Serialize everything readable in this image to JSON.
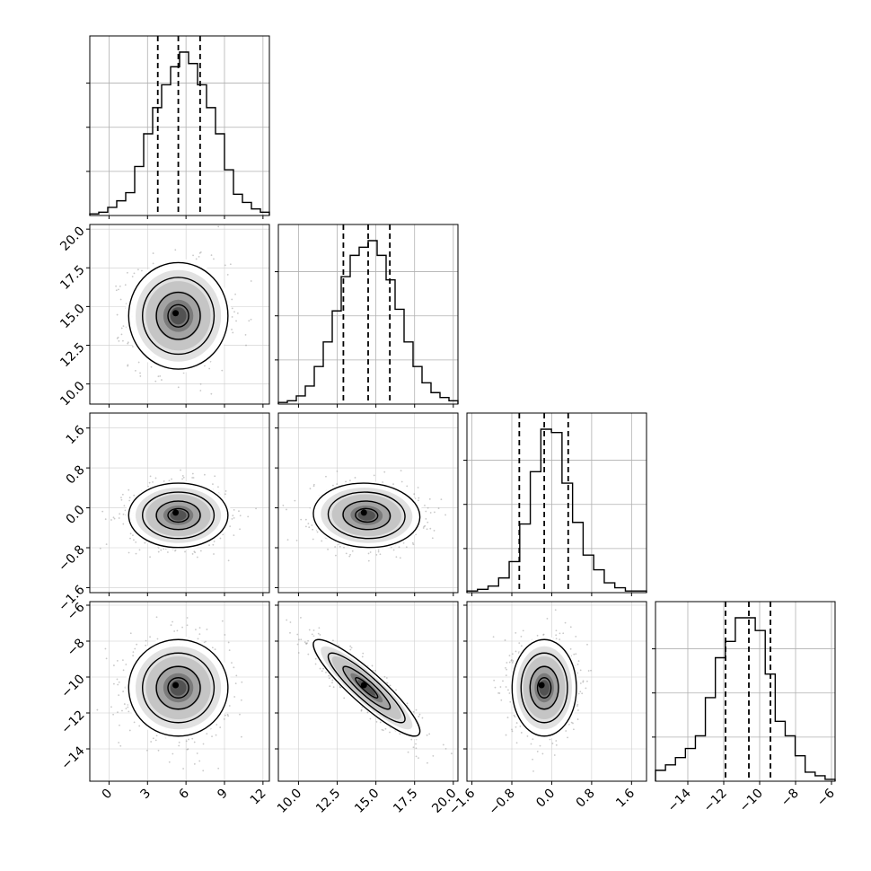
{
  "chart_data": {
    "type": "corner",
    "grid": true,
    "quantiles": [
      0.16,
      0.5,
      0.84
    ],
    "parameters": [
      {
        "range": [
          -1.5,
          12.5
        ],
        "ticks": [
          0,
          3,
          6,
          9,
          12
        ],
        "tick_labels": [
          "0",
          "3",
          "6",
          "9",
          "12"
        ],
        "median": 5.4,
        "q16": 3.8,
        "q84": 7.1,
        "hist": [
          0.01,
          0.02,
          0.05,
          0.09,
          0.14,
          0.3,
          0.5,
          0.66,
          0.8,
          0.91,
          1.0,
          0.93,
          0.8,
          0.66,
          0.5,
          0.28,
          0.13,
          0.08,
          0.04,
          0.02
        ]
      },
      {
        "range": [
          8.7,
          20.3
        ],
        "ticks": [
          10.0,
          12.5,
          15.0,
          17.5,
          20.0
        ],
        "tick_labels": [
          "10.0",
          "12.5",
          "15.0",
          "17.5",
          "20.0"
        ],
        "median": 14.5,
        "q16": 12.9,
        "q84": 15.9,
        "hist": [
          0.01,
          0.02,
          0.05,
          0.11,
          0.23,
          0.38,
          0.57,
          0.78,
          0.91,
          0.96,
          1.0,
          0.91,
          0.76,
          0.58,
          0.38,
          0.23,
          0.13,
          0.07,
          0.04,
          0.02
        ]
      },
      {
        "range": [
          -1.7,
          1.9
        ],
        "ticks": [
          -1.6,
          -0.8,
          0.0,
          0.8,
          1.6
        ],
        "tick_labels": [
          "−1.6",
          "−0.8",
          "0.0",
          "0.8",
          "1.6"
        ],
        "median": -0.15,
        "q16": -0.65,
        "q84": 0.33,
        "hist": [
          0.01,
          0.02,
          0.04,
          0.09,
          0.19,
          0.42,
          0.74,
          1.0,
          0.98,
          0.67,
          0.43,
          0.23,
          0.14,
          0.06,
          0.03,
          0.01,
          0.01
        ]
      },
      {
        "range": [
          -15.8,
          -5.8
        ],
        "ticks": [
          -14,
          -12,
          -10,
          -8,
          -6
        ],
        "tick_labels": [
          "−14",
          "−12",
          "−10",
          "−8",
          "−6"
        ],
        "median": -10.6,
        "q16": -11.9,
        "q84": -9.4,
        "hist": [
          0.06,
          0.09,
          0.13,
          0.18,
          0.25,
          0.46,
          0.68,
          0.77,
          0.9,
          0.9,
          0.83,
          0.59,
          0.33,
          0.25,
          0.14,
          0.05,
          0.03,
          0.01
        ]
      }
    ],
    "pairs": [
      {
        "x": 0,
        "y": 1,
        "cx": 5.4,
        "cy": 14.4,
        "sx": 1.8,
        "sy": 1.6,
        "rho": 0.0
      },
      {
        "x": 0,
        "y": 2,
        "cx": 5.4,
        "cy": -0.15,
        "sx": 1.8,
        "sy": 0.3,
        "rho": 0.0
      },
      {
        "x": 1,
        "y": 2,
        "cx": 14.4,
        "cy": -0.15,
        "sx": 1.6,
        "sy": 0.3,
        "rho": -0.05
      },
      {
        "x": 0,
        "y": 3,
        "cx": 5.4,
        "cy": -10.6,
        "sx": 1.8,
        "sy": 1.25,
        "rho": 0.0
      },
      {
        "x": 1,
        "y": 3,
        "cx": 14.4,
        "cy": -10.6,
        "sx": 1.6,
        "sy": 1.25,
        "rho": -0.9
      },
      {
        "x": 2,
        "y": 3,
        "cx": -0.15,
        "cy": -10.6,
        "sx": 0.3,
        "sy": 1.25,
        "rho": 0.0
      }
    ]
  }
}
